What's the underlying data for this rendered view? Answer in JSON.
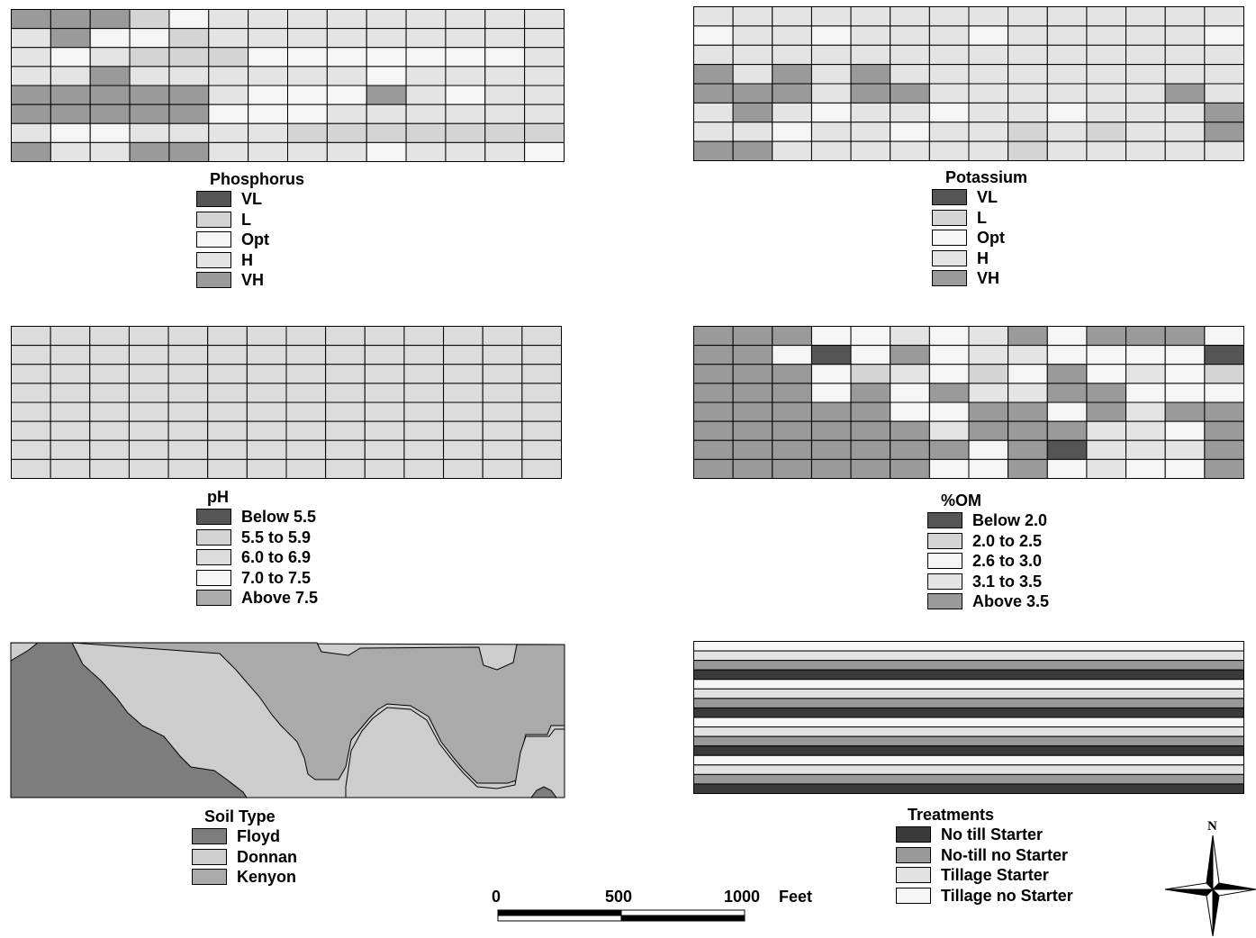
{
  "colors": {
    "VL": "#555555",
    "L": "#d4d4d4",
    "Opt": "#f5f5f5",
    "H": "#e4e4e4",
    "VH": "#9a9a9a",
    "ph_low": "#dcdcdc",
    "soil_floyd": "#7d7d7d",
    "soil_donnan": "#cdcdcd",
    "soil_kenyon": "#aaaaaa",
    "trt_nts": "#3a3a3a",
    "trt_ntns": "#999999",
    "trt_ts": "#e2e2e2",
    "trt_tns": "#f6f6f6"
  },
  "phosphorus": {
    "title": "Phosphorus",
    "legend": [
      {
        "label": "VL",
        "code": "VL"
      },
      {
        "label": "L",
        "code": "L"
      },
      {
        "label": "Opt",
        "code": "Opt"
      },
      {
        "label": "H",
        "code": "H"
      },
      {
        "label": "VH",
        "code": "VH"
      }
    ],
    "grid": [
      [
        "VH",
        "VH",
        "VH",
        "L",
        "Opt",
        "H",
        "H",
        "H",
        "H",
        "H",
        "H",
        "H",
        "H",
        "H"
      ],
      [
        "H",
        "VH",
        "Opt",
        "Opt",
        "L",
        "H",
        "H",
        "H",
        "H",
        "H",
        "H",
        "H",
        "H",
        "H"
      ],
      [
        "H",
        "Opt",
        "H",
        "L",
        "L",
        "L",
        "Opt",
        "Opt",
        "Opt",
        "Opt",
        "Opt",
        "Opt",
        "Opt",
        "H"
      ],
      [
        "H",
        "H",
        "VH",
        "H",
        "H",
        "H",
        "H",
        "H",
        "H",
        "Opt",
        "H",
        "H",
        "H",
        "H"
      ],
      [
        "VH",
        "VH",
        "VH",
        "VH",
        "VH",
        "H",
        "Opt",
        "Opt",
        "Opt",
        "VH",
        "H",
        "Opt",
        "H",
        "H"
      ],
      [
        "VH",
        "VH",
        "VH",
        "VH",
        "VH",
        "Opt",
        "Opt",
        "Opt",
        "H",
        "H",
        "H",
        "H",
        "H",
        "H"
      ],
      [
        "H",
        "Opt",
        "Opt",
        "H",
        "H",
        "H",
        "H",
        "L",
        "L",
        "L",
        "L",
        "L",
        "L",
        "L"
      ],
      [
        "VH",
        "H",
        "H",
        "VH",
        "VH",
        "H",
        "H",
        "H",
        "H",
        "Opt",
        "H",
        "H",
        "H",
        "Opt"
      ]
    ]
  },
  "potassium": {
    "title": "Potassium",
    "legend": [
      {
        "label": "VL",
        "code": "VL"
      },
      {
        "label": "L",
        "code": "L"
      },
      {
        "label": "Opt",
        "code": "Opt"
      },
      {
        "label": "H",
        "code": "H"
      },
      {
        "label": "VH",
        "code": "VH"
      }
    ],
    "grid": [
      [
        "H",
        "H",
        "H",
        "H",
        "H",
        "H",
        "H",
        "H",
        "H",
        "H",
        "H",
        "H",
        "H",
        "H"
      ],
      [
        "Opt",
        "H",
        "H",
        "Opt",
        "H",
        "H",
        "H",
        "Opt",
        "H",
        "H",
        "H",
        "H",
        "H",
        "Opt"
      ],
      [
        "H",
        "H",
        "H",
        "H",
        "H",
        "H",
        "H",
        "H",
        "H",
        "H",
        "H",
        "H",
        "H",
        "H"
      ],
      [
        "VH",
        "H",
        "VH",
        "H",
        "VH",
        "H",
        "H",
        "H",
        "H",
        "H",
        "H",
        "H",
        "H",
        "H"
      ],
      [
        "VH",
        "VH",
        "VH",
        "H",
        "VH",
        "VH",
        "H",
        "H",
        "H",
        "H",
        "H",
        "H",
        "VH",
        "H"
      ],
      [
        "H",
        "VH",
        "H",
        "Opt",
        "H",
        "H",
        "Opt",
        "H",
        "H",
        "Opt",
        "H",
        "H",
        "H",
        "VH"
      ],
      [
        "H",
        "H",
        "Opt",
        "H",
        "H",
        "Opt",
        "H",
        "H",
        "L",
        "H",
        "L",
        "H",
        "H",
        "VH"
      ],
      [
        "VH",
        "VH",
        "H",
        "H",
        "H",
        "H",
        "H",
        "H",
        "L",
        "H",
        "H",
        "H",
        "H",
        "H"
      ]
    ]
  },
  "ph": {
    "title": "pH",
    "legend": [
      {
        "label": "Below 5.5",
        "code": "VL"
      },
      {
        "label": "5.5 to 5.9",
        "code": "L"
      },
      {
        "label": "6.0 to 6.9",
        "code": "ph_low"
      },
      {
        "label": "7.0 to 7.5",
        "code": "Opt"
      },
      {
        "label": "Above 7.5",
        "code": "soil_kenyon"
      }
    ],
    "fill_code": "ph_low"
  },
  "om": {
    "title": "%OM",
    "legend": [
      {
        "label": "Below 2.0",
        "code": "VL"
      },
      {
        "label": "2.0 to 2.5",
        "code": "L"
      },
      {
        "label": "2.6 to 3.0",
        "code": "Opt"
      },
      {
        "label": "3.1 to 3.5",
        "code": "H"
      },
      {
        "label": "Above 3.5",
        "code": "VH"
      }
    ],
    "grid": [
      [
        "VH",
        "VH",
        "VH",
        "Opt",
        "Opt",
        "H",
        "Opt",
        "H",
        "VH",
        "Opt",
        "VH",
        "VH",
        "VH",
        "Opt"
      ],
      [
        "VH",
        "VH",
        "Opt",
        "VL",
        "Opt",
        "VH",
        "Opt",
        "H",
        "H",
        "Opt",
        "Opt",
        "Opt",
        "Opt",
        "VL"
      ],
      [
        "VH",
        "VH",
        "VH",
        "Opt",
        "L",
        "H",
        "Opt",
        "L",
        "Opt",
        "VH",
        "Opt",
        "H",
        "Opt",
        "L"
      ],
      [
        "VH",
        "VH",
        "VH",
        "Opt",
        "VH",
        "Opt",
        "VH",
        "H",
        "H",
        "VH",
        "VH",
        "Opt",
        "Opt",
        "Opt"
      ],
      [
        "VH",
        "VH",
        "VH",
        "VH",
        "VH",
        "Opt",
        "Opt",
        "VH",
        "VH",
        "Opt",
        "VH",
        "H",
        "VH",
        "VH"
      ],
      [
        "VH",
        "VH",
        "VH",
        "VH",
        "VH",
        "VH",
        "H",
        "VH",
        "VH",
        "VH",
        "H",
        "H",
        "Opt",
        "VH"
      ],
      [
        "VH",
        "VH",
        "VH",
        "VH",
        "VH",
        "VH",
        "VH",
        "Opt",
        "VH",
        "VL",
        "H",
        "H",
        "H",
        "VH"
      ],
      [
        "VH",
        "VH",
        "VH",
        "VH",
        "VH",
        "VH",
        "Opt",
        "Opt",
        "VH",
        "Opt",
        "H",
        "Opt",
        "Opt",
        "VH"
      ]
    ]
  },
  "soil": {
    "title": "Soil Type",
    "legend": [
      {
        "label": "Floyd",
        "code": "soil_floyd"
      },
      {
        "label": "Donnan",
        "code": "soil_donnan"
      },
      {
        "label": "Kenyon",
        "code": "soil_kenyon"
      }
    ]
  },
  "treatments": {
    "title": "Treatments",
    "legend": [
      {
        "label": "No till Starter",
        "code": "trt_nts"
      },
      {
        "label": "No-till no Starter",
        "code": "trt_ntns"
      },
      {
        "label": "Tillage Starter",
        "code": "trt_ts"
      },
      {
        "label": "Tillage no Starter",
        "code": "trt_tns"
      }
    ],
    "strips": [
      "trt_tns",
      "trt_ts",
      "trt_ntns",
      "trt_nts",
      "trt_tns",
      "trt_ts",
      "trt_ntns",
      "trt_nts",
      "trt_tns",
      "trt_ts",
      "trt_ntns",
      "trt_nts",
      "trt_tns",
      "trt_ts",
      "trt_ntns",
      "trt_nts"
    ]
  },
  "scalebar": {
    "labels": [
      "0",
      "500",
      "1000"
    ],
    "unit": "Feet"
  },
  "north_arrow": {
    "label": "N",
    "icon": "compass-rose-icon"
  }
}
